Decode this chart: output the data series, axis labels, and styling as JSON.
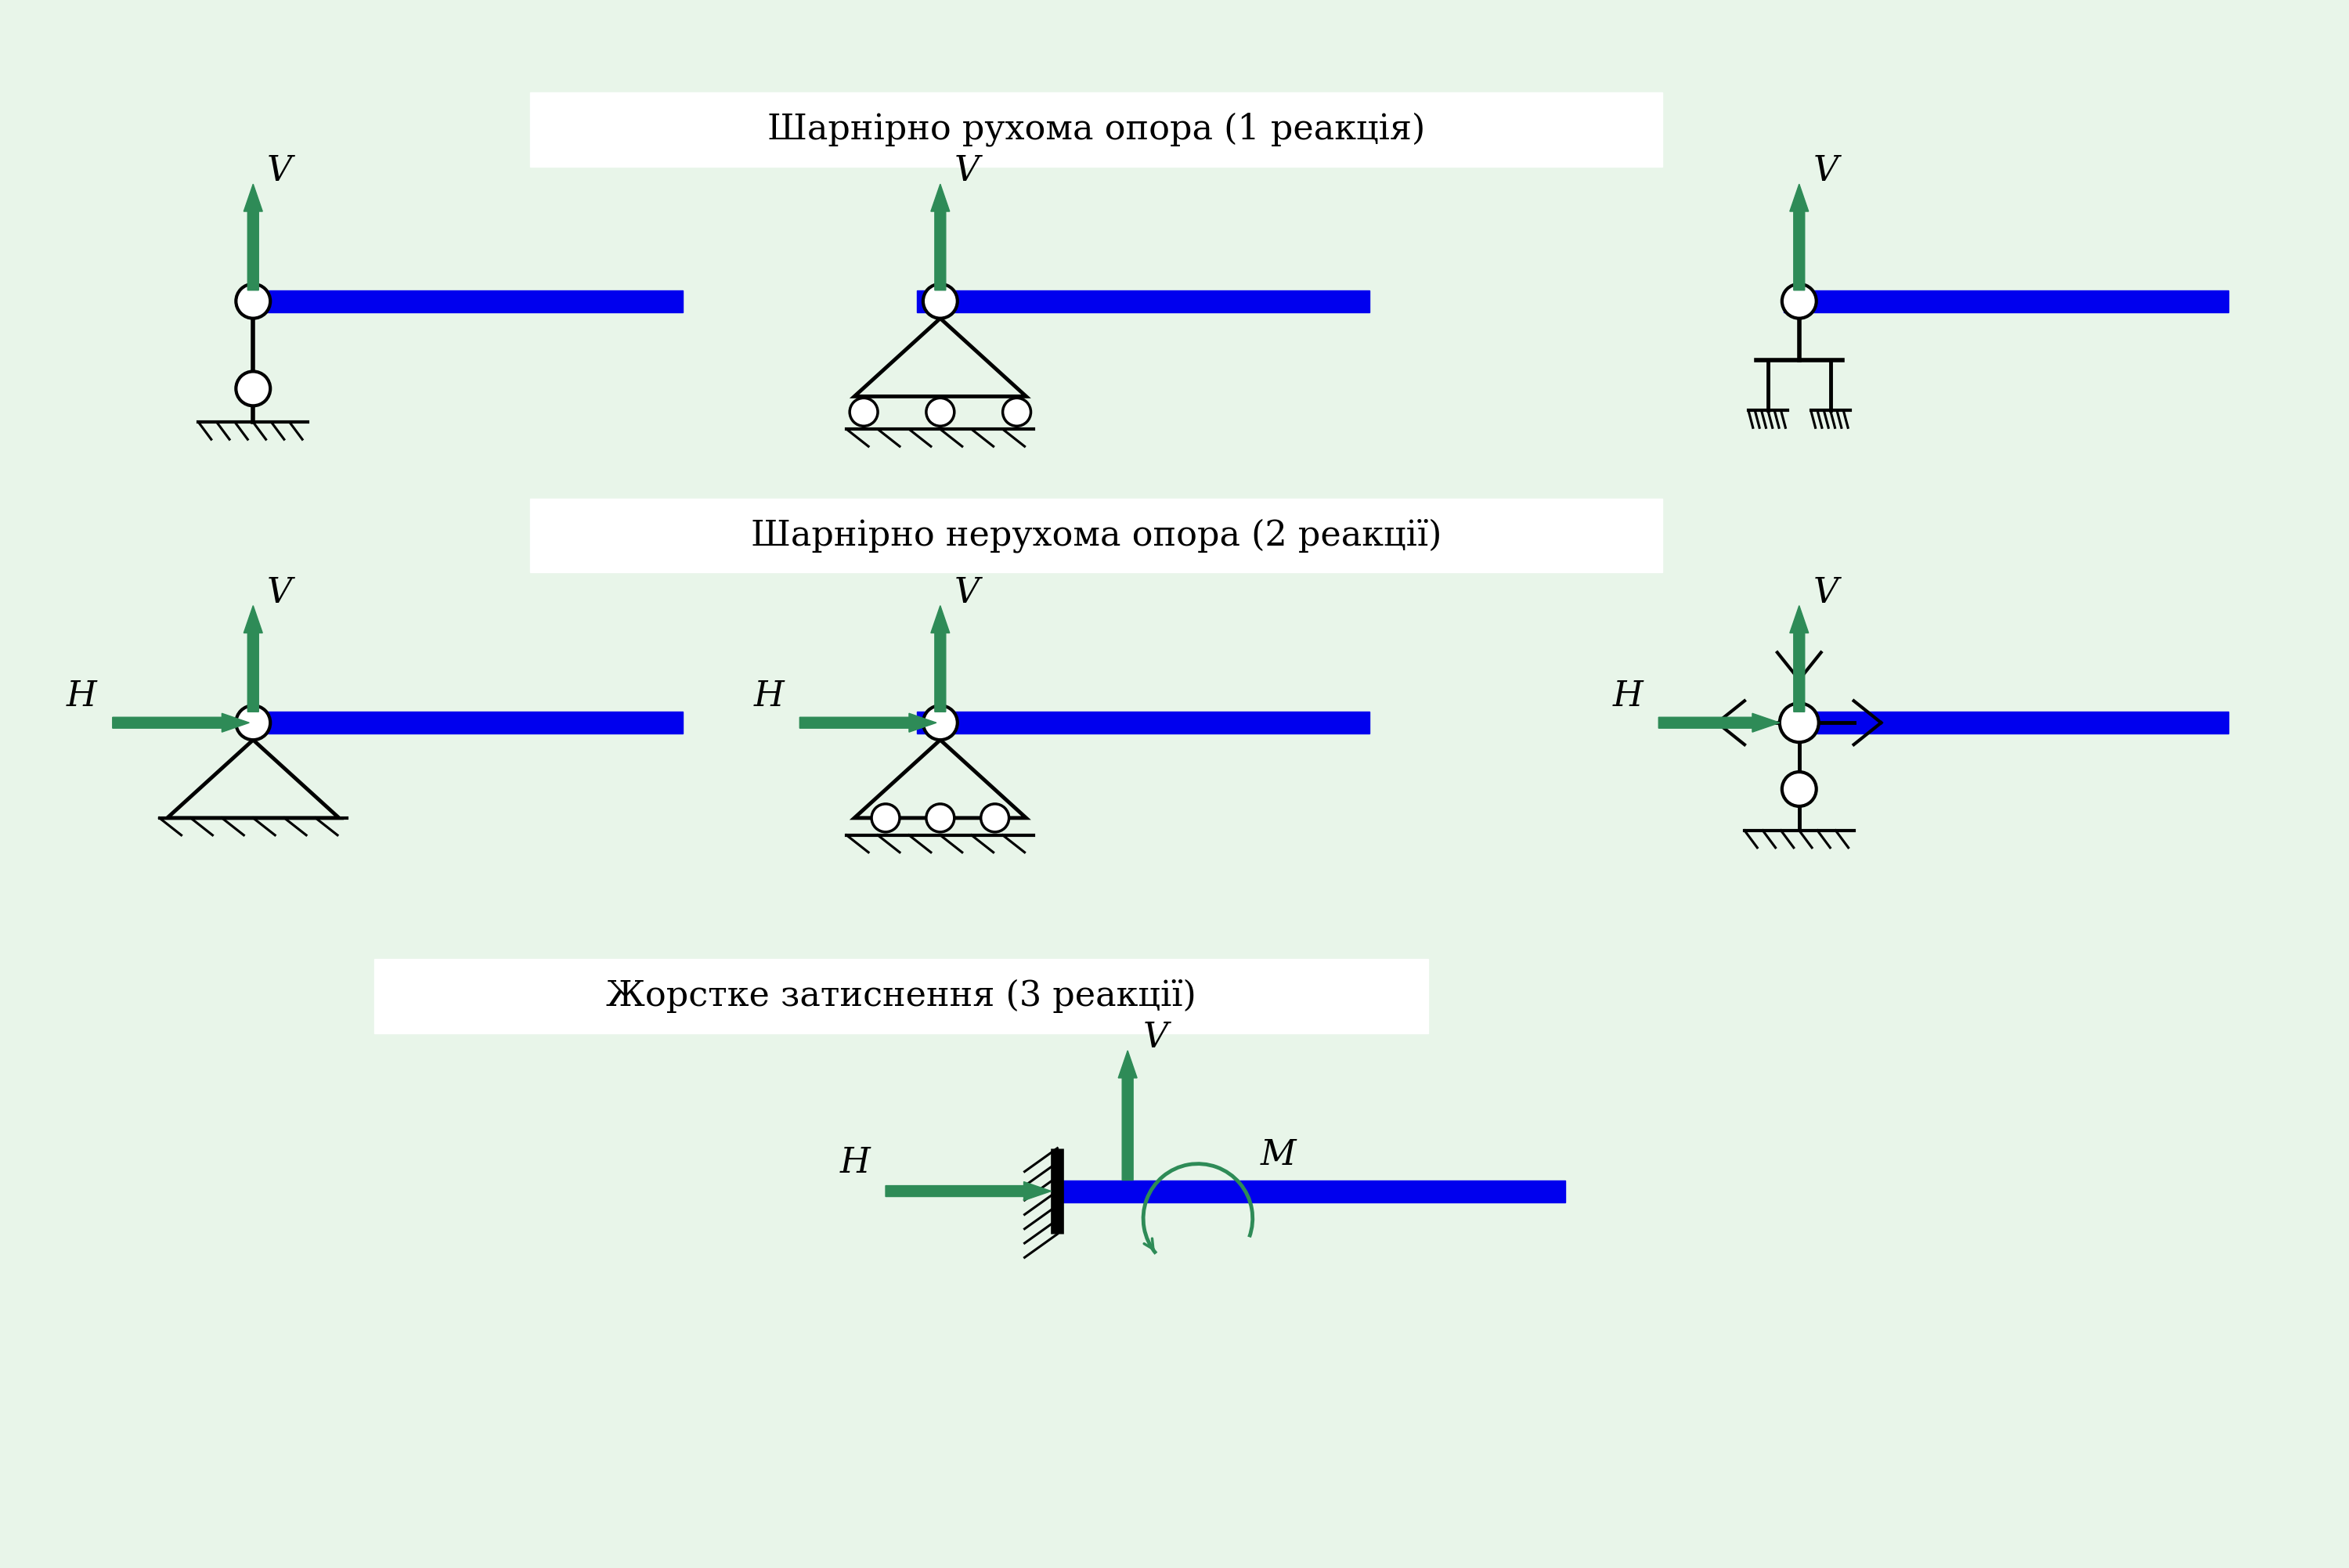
{
  "bg_color": "#e8f5e9",
  "white_box_color": "#ffffff",
  "beam_color": "#0000ee",
  "support_color": "#000000",
  "arrow_color": "#2e8b57",
  "text_color": "#000000",
  "title1": "Шарнірно рухома опора (1 реакція)",
  "title2": "Шарнірно нерухома опора (2 реакції)",
  "title3": "Жорстке затиснення (3 реакції)",
  "label_V": "V",
  "label_H": "H",
  "label_M": "M",
  "title_fontsize": 32,
  "label_fontsize": 32
}
